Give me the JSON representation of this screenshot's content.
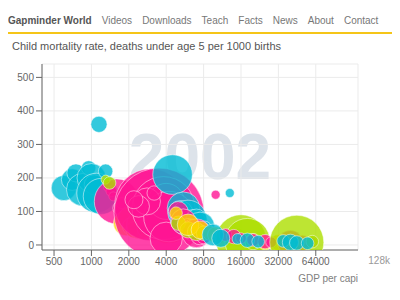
{
  "chart_data": {
    "type": "scatter",
    "title": "Child mortality rate, deaths under age 5 per 1000 births",
    "xlabel": "GDP per capi",
    "annotations": [
      "2002",
      "128k",
      "Gapminder World",
      "Videos",
      "Downloads",
      "Teach",
      "Facts",
      "News",
      "About",
      "Contact"
    ],
    "log": "x",
    "grid": true,
    "xlim": [
      400,
      140000
    ],
    "ylim": [
      -15,
      540
    ],
    "xticks": [
      500,
      1000,
      2000,
      4000,
      8000,
      16000,
      32000,
      64000
    ],
    "yticks": [
      0,
      100,
      200,
      300,
      400,
      500
    ],
    "x": [
      600,
      700,
      750,
      850,
      950,
      1000,
      1050,
      1100,
      1200,
      1150,
      1300,
      1350,
      1400,
      1450,
      1500,
      1600,
      1700,
      1750,
      1300,
      1400,
      1800,
      1900,
      2000,
      2100,
      2200,
      2500,
      2800,
      3500,
      4000,
      4500,
      3000,
      3500,
      3800,
      4000,
      4200,
      4000,
      2800,
      2400,
      2200,
      3200,
      4500,
      5500,
      5200,
      6000,
      6500,
      7000,
      7500,
      8000,
      5000,
      5500,
      6000,
      6500,
      7000,
      7500,
      8000,
      5000,
      6000,
      7000,
      8000,
      4800,
      6000,
      7500,
      9000,
      10000,
      11000,
      13000,
      14000,
      15000,
      16000,
      18000,
      20000,
      22000,
      25000,
      28000,
      30000,
      32000,
      35000,
      12000,
      14000,
      16000,
      20000,
      25000,
      28000,
      40000,
      50000,
      60000,
      55000,
      45000,
      60000,
      10000,
      13000,
      9500,
      11000,
      35000,
      40000,
      45000,
      55000,
      15000,
      18000,
      22000
    ],
    "values": [
      170,
      195,
      215,
      165,
      230,
      200,
      180,
      155,
      145,
      360,
      220,
      190,
      175,
      160,
      145,
      130,
      110,
      125,
      195,
      185,
      75,
      65,
      80,
      55,
      45,
      60,
      50,
      55,
      45,
      35,
      120,
      95,
      110,
      130,
      85,
      20,
      130,
      115,
      135,
      155,
      210,
      110,
      95,
      80,
      65,
      75,
      55,
      45,
      100,
      70,
      55,
      45,
      35,
      30,
      25,
      65,
      45,
      40,
      35,
      95,
      60,
      45,
      35,
      30,
      25,
      20,
      18,
      22,
      15,
      12,
      10,
      8,
      7,
      8,
      6,
      7,
      5,
      30,
      25,
      20,
      15,
      10,
      8,
      6,
      5,
      7,
      5,
      8,
      10,
      150,
      155,
      30,
      20,
      12,
      8,
      6,
      5,
      18,
      14,
      10
    ],
    "size": [
      14,
      12,
      10,
      18,
      8,
      16,
      11,
      22,
      20,
      9,
      8,
      6,
      7,
      6,
      5,
      25,
      8,
      6,
      5,
      7,
      8,
      14,
      12,
      10,
      9,
      16,
      11,
      9,
      15,
      11,
      40,
      50,
      35,
      20,
      28,
      18,
      15,
      12,
      10,
      8,
      22,
      18,
      14,
      20,
      15,
      12,
      16,
      10,
      11,
      14,
      9,
      12,
      16,
      11,
      8,
      8,
      9,
      10,
      8,
      7,
      12,
      10,
      8,
      9,
      7,
      8,
      6,
      10,
      28,
      25,
      9,
      6,
      8,
      7,
      8,
      9,
      7,
      7,
      8,
      6,
      7,
      8,
      6,
      14,
      9,
      6,
      5,
      30,
      7,
      5,
      5,
      12,
      10,
      7,
      9,
      8,
      7,
      6,
      8,
      7
    ],
    "colors": [
      "#00bcd4",
      "#00bcd4",
      "#00bcd4",
      "#00bcd4",
      "#00bcd4",
      "#00bcd4",
      "#00bcd4",
      "#00bcd4",
      "#00bcd4",
      "#00bcd4",
      "#00bcd4",
      "#00bcd4",
      "#ff1493",
      "#ff1493",
      "#ff1493",
      "#ff1493",
      "#ff1493",
      "#ff1493",
      "#adde00",
      "#adde00",
      "#ffd700",
      "#ffd700",
      "#ffd700",
      "#ffd700",
      "#ffd700",
      "#ffd700",
      "#ffd700",
      "#ffd700",
      "#ffd700",
      "#ffd700",
      "#ff1493",
      "#ff1493",
      "#ff1493",
      "#ff1493",
      "#ff1493",
      "#ff1493",
      "#ff1493",
      "#ff1493",
      "#ff1493",
      "#ff1493",
      "#00bcd4",
      "#00bcd4",
      "#00bcd4",
      "#00bcd4",
      "#00bcd4",
      "#00bcd4",
      "#00bcd4",
      "#00bcd4",
      "#ff1493",
      "#ff1493",
      "#ff1493",
      "#ff1493",
      "#ff1493",
      "#ff1493",
      "#ff1493",
      "#adde00",
      "#adde00",
      "#adde00",
      "#adde00",
      "#ffd700",
      "#ffd700",
      "#ffd700",
      "#ffd700",
      "#ffd700",
      "#ffd700",
      "#adde00",
      "#adde00",
      "#adde00",
      "#adde00",
      "#adde00",
      "#adde00",
      "#ffd700",
      "#ffd700",
      "#ffd700",
      "#ffd700",
      "#ffd700",
      "#ffd700",
      "#ff1493",
      "#ff1493",
      "#ff1493",
      "#ff1493",
      "#ff1493",
      "#ff1493",
      "#ff1493",
      "#ff1493",
      "#ff1493",
      "#ff1493",
      "#adde00",
      "#adde00",
      "#ff1493",
      "#00bcd4",
      "#00bcd4",
      "#00bcd4",
      "#00bcd4",
      "#00bcd4",
      "#00bcd4",
      "#00bcd4",
      "#00bcd4",
      "#00bcd4",
      "#00bcd4"
    ]
  }
}
